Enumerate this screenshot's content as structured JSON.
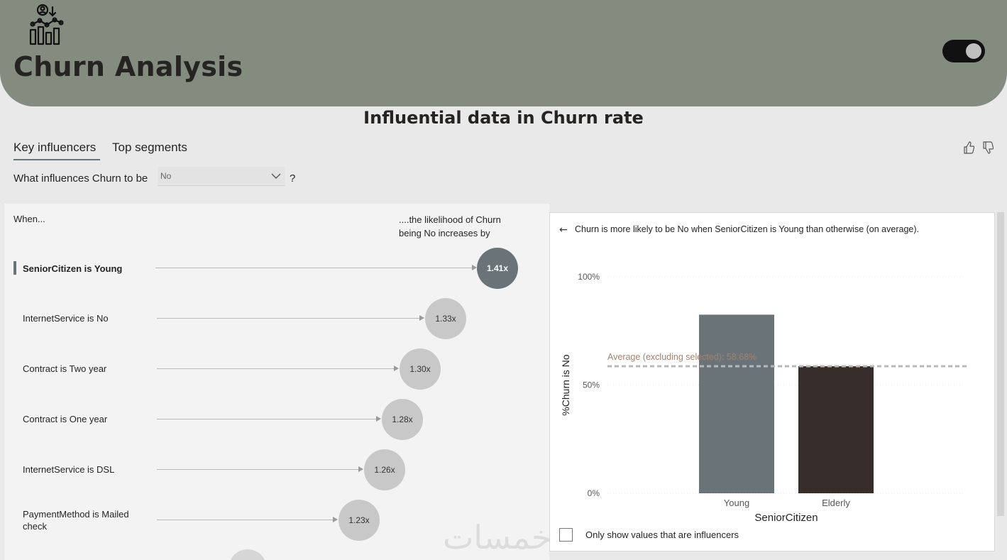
{
  "header": {
    "title": "Churn Analysis",
    "logo_icon": "analytics-people-icon",
    "toggle_state": "on",
    "background": "#848c80"
  },
  "page_title": "Influential data in Churn rate",
  "tabs": [
    {
      "label": "Key influencers",
      "active": true
    },
    {
      "label": "Top segments",
      "active": false
    }
  ],
  "question": {
    "prefix": "What influences Churn to be",
    "dropdown_value": "No",
    "suffix": "?"
  },
  "influencers": {
    "when_label": "When...",
    "likelihood_label": "....the likelihood of Churn being No increases by",
    "items": [
      {
        "label": "SeniorCitizen is Young",
        "value": "1.41x",
        "multiplier": 1.41,
        "selected": true
      },
      {
        "label": "InternetService is No",
        "value": "1.33x",
        "multiplier": 1.33,
        "selected": false
      },
      {
        "label": "Contract is Two year",
        "value": "1.30x",
        "multiplier": 1.3,
        "selected": false
      },
      {
        "label": "Contract is One year",
        "value": "1.28x",
        "multiplier": 1.28,
        "selected": false
      },
      {
        "label": "InternetService is DSL",
        "value": "1.26x",
        "multiplier": 1.26,
        "selected": false
      },
      {
        "label": "PaymentMethod is Mailed check",
        "value": "1.23x",
        "multiplier": 1.23,
        "selected": false
      }
    ]
  },
  "detail": {
    "explanation": "Churn is more likely to be No when SeniorCitizen is Young than otherwise (on average).",
    "checkbox_label": "Only show values that are influencers"
  },
  "watermark": "خمسات",
  "chart_data": {
    "type": "bar",
    "categories": [
      "Young",
      "Elderly"
    ],
    "values": [
      82.5,
      58.68
    ],
    "xlabel": "SeniorCitizen",
    "ylabel": "%Churn is No",
    "ylim": [
      0,
      100
    ],
    "yticks": [
      "0%",
      "50%",
      "100%"
    ],
    "reference_line": {
      "label": "Average (excluding selected): 58.68%",
      "value": 58.68
    },
    "colors": [
      "#6a7478",
      "#372e2c"
    ],
    "grid": true
  }
}
